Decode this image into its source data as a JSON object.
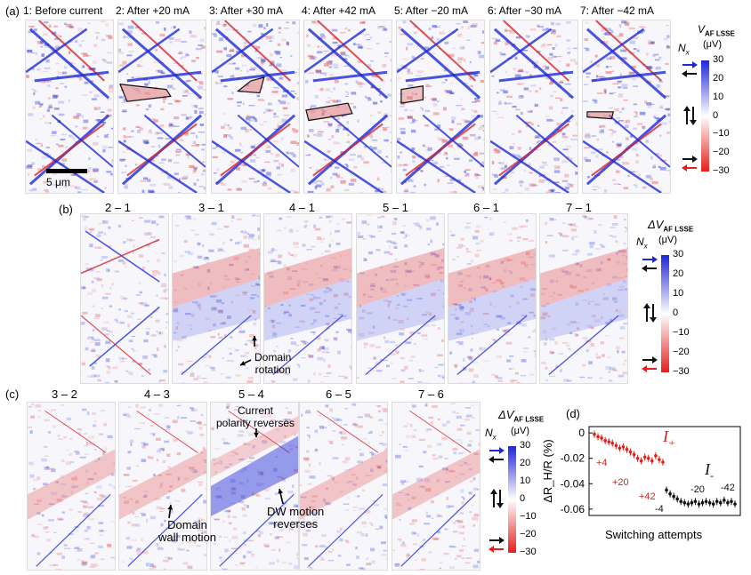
{
  "panel_a": {
    "label": "(a)",
    "titles": [
      "1: Before current",
      "2: After +20 mA",
      "3: After +30 mA",
      "4: After +42 mA",
      "5: After −20 mA",
      "6: After −30 mA",
      "7: After −42 mA"
    ],
    "scalebar": "5 μm",
    "colorbar": {
      "title": "V",
      "subscript": "AF LSSE",
      "unit": "(μV)",
      "nx": "N",
      "nx_sub": "x",
      "ticks": [
        "30",
        "20",
        "10",
        "0",
        "−10",
        "−20",
        "−30"
      ]
    }
  },
  "panel_b": {
    "label": "(b)",
    "titles": [
      "2 – 1",
      "3 – 1",
      "4 – 1",
      "5 – 1",
      "6 – 1",
      "7 – 1"
    ],
    "annotation": "Domain\nrotation",
    "colorbar": {
      "title": "ΔV",
      "subscript": "AF LSSE",
      "unit": "(μV)",
      "nx": "N",
      "nx_sub": "x",
      "ticks": [
        "30",
        "20",
        "10",
        "0",
        "−10",
        "−20",
        "−30"
      ]
    }
  },
  "panel_c": {
    "label": "(c)",
    "titles": [
      "3 – 2",
      "4 – 3",
      "5 – 4",
      "6 – 5",
      "7 – 6"
    ],
    "annotation_top": "Current\npolarity reverses",
    "annotation_wall": "Domain\nwall motion",
    "annotation_dw": "DW motion\nreverses",
    "colorbar": {
      "title": "ΔV",
      "subscript": "AF LSSE",
      "unit": "(μV)",
      "nx": "N",
      "nx_sub": "x",
      "ticks": [
        "30",
        "20",
        "10",
        "0",
        "−10",
        "−20",
        "−30"
      ]
    }
  },
  "panel_d": {
    "label": "(d)",
    "chart_data": {
      "type": "scatter",
      "ylabel": "ΔR_H/R (%)",
      "xlabel": "Switching attempts",
      "ylim": [
        -0.065,
        0.005
      ],
      "yticks": [
        "0",
        "-0.02",
        "-0.04",
        "-0.06"
      ],
      "series": [
        {
          "name": "I+",
          "color": "#e0201b",
          "values": [
            -0.001,
            -0.003,
            -0.004,
            -0.006,
            -0.007,
            -0.008,
            -0.01,
            -0.012,
            -0.011,
            -0.013,
            -0.015,
            -0.017,
            -0.02,
            -0.022,
            -0.019,
            -0.02,
            -0.022,
            -0.018,
            -0.021,
            -0.023
          ]
        },
        {
          "name": "I-",
          "color": "#111111",
          "values": [
            -0.045,
            -0.048,
            -0.05,
            -0.052,
            -0.054,
            -0.055,
            -0.056,
            -0.055,
            -0.054,
            -0.056,
            -0.055,
            -0.054,
            -0.055,
            -0.056,
            -0.054,
            -0.055,
            -0.053,
            -0.055,
            -0.054,
            -0.056
          ]
        }
      ],
      "legend": [
        "I",
        "+",
        "I",
        "-"
      ],
      "annotations": [
        "+4",
        "+20",
        "+42",
        "-4",
        "-20",
        "-42"
      ]
    }
  },
  "colors": {
    "blue": "#2026d8",
    "red": "#e3201b",
    "white": "#ffffff"
  }
}
